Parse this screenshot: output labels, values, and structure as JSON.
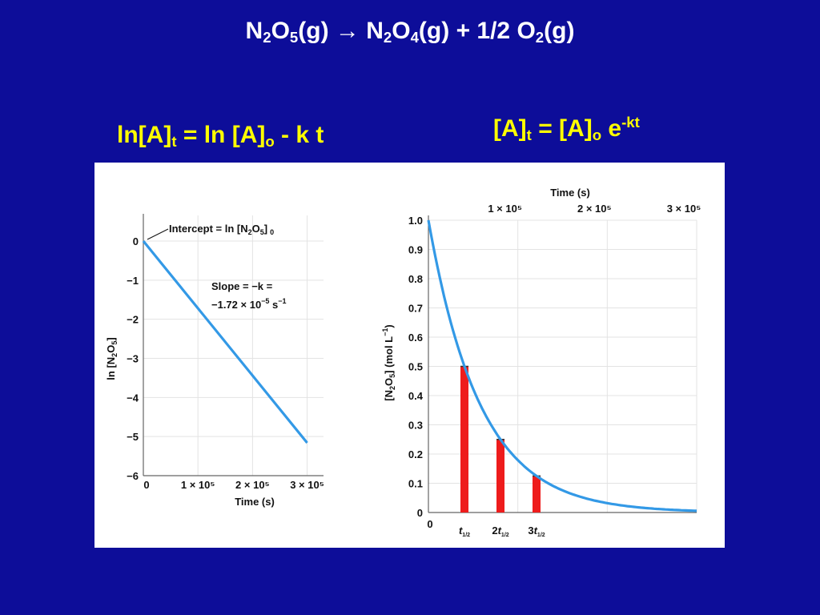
{
  "slide": {
    "title": {
      "p1": "N",
      "s1": "2",
      "p2": "O",
      "s2": "5",
      "p3": "(g) → N",
      "s3": "2",
      "p4": "O",
      "s4": "4",
      "p5": "(g) + 1/2 O",
      "s5": "2",
      "p6": "(g)"
    },
    "eq_left": {
      "p1": "ln[A]",
      "s1": "t",
      "p2": " = ln [A]",
      "s2": "o",
      "p3": " - k t"
    },
    "eq_right": {
      "p1": "[A]",
      "s1": "t",
      "p2": " = [A]",
      "s2": "o",
      "p3": " e",
      "sup": "-kt"
    }
  },
  "colors": {
    "background": "#0d0d99",
    "equation": "#ffff00",
    "curve": "#3399e6",
    "bar": "#ee1c1c"
  },
  "chart_data": [
    {
      "type": "line",
      "xlabel": "Time (s)",
      "ylabel": "ln [N2O5]",
      "xlim": [
        0,
        330000
      ],
      "ylim": [
        -6,
        0.3
      ],
      "xticks": [
        {
          "v": 0,
          "label": "0"
        },
        {
          "v": 100000,
          "label": "1 × 10⁵"
        },
        {
          "v": 200000,
          "label": "2 × 10⁵"
        },
        {
          "v": 300000,
          "label": "3 × 10⁵"
        }
      ],
      "yticks": [
        {
          "v": 0,
          "label": "0"
        },
        {
          "v": -1,
          "label": "−1"
        },
        {
          "v": -2,
          "label": "−2"
        },
        {
          "v": -3,
          "label": "−3"
        },
        {
          "v": -4,
          "label": "−4"
        },
        {
          "v": -5,
          "label": "−5"
        },
        {
          "v": -6,
          "label": "−6"
        }
      ],
      "grid": true,
      "series": [
        {
          "x": [
            0,
            300000
          ],
          "y": [
            0,
            -5.16
          ]
        }
      ],
      "annotations": {
        "intercept": {
          "p1": "Intercept = ln [N",
          "s1": "2",
          "p2": "O",
          "s2": "5",
          "p3": "]",
          "s3": "0"
        },
        "slope_line1": "Slope = −k =",
        "slope_line2": {
          "p1": "−1.72 × 10",
          "sup1": "−5",
          "p2": " s",
          "sup2": "−1"
        }
      }
    },
    {
      "type": "line",
      "xlabel": "Time (s)",
      "ylabel": "[N2O5] (mol L−1)",
      "xlim": [
        0,
        300000
      ],
      "ylim": [
        0,
        1.0
      ],
      "xticks_top": [
        {
          "v": 100000,
          "label": "1 × 10⁵"
        },
        {
          "v": 200000,
          "label": "2 × 10⁵"
        },
        {
          "v": 300000,
          "label": "3 × 10⁵"
        }
      ],
      "x_zero_label": "0",
      "yticks": [
        {
          "v": 0,
          "label": "0"
        },
        {
          "v": 0.1,
          "label": "0.1"
        },
        {
          "v": 0.2,
          "label": "0.2"
        },
        {
          "v": 0.3,
          "label": "0.3"
        },
        {
          "v": 0.4,
          "label": "0.4"
        },
        {
          "v": 0.5,
          "label": "0.5"
        },
        {
          "v": 0.6,
          "label": "0.6"
        },
        {
          "v": 0.7,
          "label": "0.7"
        },
        {
          "v": 0.8,
          "label": "0.8"
        },
        {
          "v": 0.9,
          "label": "0.9"
        },
        {
          "v": 1.0,
          "label": "1.0"
        }
      ],
      "grid": true,
      "curve": {
        "a0": 1.0,
        "k": 1.72e-05
      },
      "bars": [
        {
          "x": 40300,
          "value": 0.5,
          "label": {
            "pre": "",
            "var": "t",
            "sub": "1/2"
          }
        },
        {
          "x": 80600,
          "value": 0.25,
          "label": {
            "pre": "2",
            "var": "t",
            "sub": "1/2"
          }
        },
        {
          "x": 120900,
          "value": 0.125,
          "label": {
            "pre": "3",
            "var": "t",
            "sub": "1/2"
          }
        }
      ]
    }
  ]
}
